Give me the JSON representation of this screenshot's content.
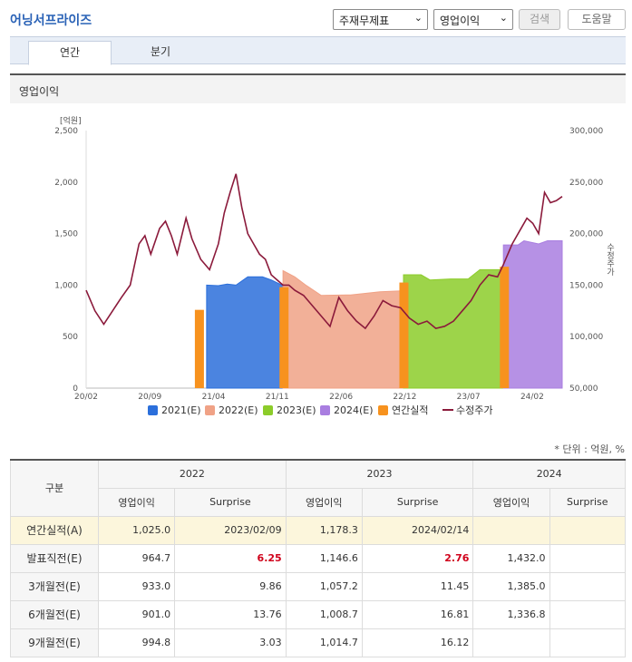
{
  "header": {
    "title": "어닝서프라이즈",
    "select_type": "주재무제표",
    "select_item": "영업이익",
    "search_label": "검색",
    "help_label": "도움말"
  },
  "tabs": [
    {
      "label": "연간",
      "active": true
    },
    {
      "label": "분기",
      "active": false
    }
  ],
  "panel_title": "영업이익",
  "chart_data": {
    "type": "area",
    "left_axis_label": "[억원]",
    "right_axis_label": "수정주가",
    "y_left_ticks": [
      "2,500",
      "2,000",
      "1,500",
      "1,000",
      "500",
      "0"
    ],
    "y_right_ticks": [
      "300,000",
      "250,000",
      "200,000",
      "150,000",
      "100,000",
      "50,000"
    ],
    "x_ticks": [
      "20/02",
      "20/09",
      "21/04",
      "21/11",
      "22/06",
      "22/12",
      "23/07",
      "24/02"
    ],
    "ylim_left": [
      0,
      2500
    ],
    "ylim_right": [
      50000,
      300000
    ],
    "legend": [
      "2021(E)",
      "2022(E)",
      "2023(E)",
      "2024(E)",
      "연간실적",
      "수정주가"
    ],
    "colors": {
      "2021": "#2b6fdb",
      "2022": "#f0a286",
      "2023": "#8ccc2a",
      "2024": "#a97ee0",
      "actual": "#f7921e",
      "price": "#8b1a3b"
    },
    "series_estimates": [
      {
        "name": "2021(E)",
        "points": [
          [
            2.05,
            1000
          ],
          [
            2.25,
            995
          ],
          [
            2.4,
            1010
          ],
          [
            2.55,
            1000
          ],
          [
            2.75,
            1080
          ],
          [
            3.0,
            1080
          ],
          [
            3.15,
            1050
          ],
          [
            3.35,
            995
          ]
        ]
      },
      {
        "name": "2022(E)",
        "points": [
          [
            3.35,
            1140
          ],
          [
            3.55,
            1080
          ],
          [
            3.75,
            995
          ],
          [
            4.0,
            900
          ],
          [
            4.5,
            905
          ],
          [
            5.0,
            935
          ],
          [
            5.4,
            945
          ]
        ]
      },
      {
        "name": "2023(E)",
        "points": [
          [
            5.4,
            1100
          ],
          [
            5.7,
            1100
          ],
          [
            5.85,
            1050
          ],
          [
            6.2,
            1060
          ],
          [
            6.5,
            1060
          ],
          [
            6.7,
            1150
          ],
          [
            7.1,
            1150
          ]
        ]
      },
      {
        "name": "2024(E)",
        "points": [
          [
            7.1,
            1390
          ],
          [
            7.35,
            1390
          ],
          [
            7.45,
            1430
          ],
          [
            7.7,
            1400
          ],
          [
            7.85,
            1430
          ],
          [
            8.1,
            1430
          ]
        ]
      }
    ],
    "actual_bars": [
      {
        "x": 1.85,
        "value": 760
      },
      {
        "x": 3.29,
        "value": 980
      },
      {
        "x": 5.33,
        "value": 1025
      },
      {
        "x": 7.04,
        "value": 1178.3
      }
    ],
    "price": [
      [
        0,
        145000
      ],
      [
        0.15,
        125000
      ],
      [
        0.3,
        112000
      ],
      [
        0.45,
        125000
      ],
      [
        0.6,
        138000
      ],
      [
        0.75,
        150000
      ],
      [
        0.9,
        190000
      ],
      [
        1.0,
        198000
      ],
      [
        1.1,
        180000
      ],
      [
        1.25,
        205000
      ],
      [
        1.35,
        212000
      ],
      [
        1.45,
        198000
      ],
      [
        1.55,
        180000
      ],
      [
        1.7,
        215000
      ],
      [
        1.8,
        195000
      ],
      [
        1.95,
        175000
      ],
      [
        2.1,
        165000
      ],
      [
        2.25,
        190000
      ],
      [
        2.35,
        220000
      ],
      [
        2.45,
        240000
      ],
      [
        2.55,
        258000
      ],
      [
        2.65,
        225000
      ],
      [
        2.75,
        200000
      ],
      [
        2.85,
        190000
      ],
      [
        2.95,
        180000
      ],
      [
        3.05,
        175000
      ],
      [
        3.15,
        160000
      ],
      [
        3.25,
        155000
      ],
      [
        3.35,
        150000
      ],
      [
        3.45,
        150000
      ],
      [
        3.55,
        145000
      ],
      [
        3.7,
        140000
      ],
      [
        3.85,
        130000
      ],
      [
        4.0,
        120000
      ],
      [
        4.15,
        110000
      ],
      [
        4.3,
        138000
      ],
      [
        4.45,
        125000
      ],
      [
        4.6,
        115000
      ],
      [
        4.75,
        108000
      ],
      [
        4.9,
        120000
      ],
      [
        5.05,
        135000
      ],
      [
        5.2,
        130000
      ],
      [
        5.35,
        128000
      ],
      [
        5.5,
        118000
      ],
      [
        5.65,
        112000
      ],
      [
        5.8,
        115000
      ],
      [
        5.95,
        108000
      ],
      [
        6.1,
        110000
      ],
      [
        6.25,
        115000
      ],
      [
        6.4,
        125000
      ],
      [
        6.55,
        135000
      ],
      [
        6.7,
        150000
      ],
      [
        6.85,
        160000
      ],
      [
        7.0,
        158000
      ],
      [
        7.1,
        170000
      ],
      [
        7.25,
        190000
      ],
      [
        7.4,
        205000
      ],
      [
        7.5,
        215000
      ],
      [
        7.6,
        210000
      ],
      [
        7.7,
        200000
      ],
      [
        7.8,
        240000
      ],
      [
        7.9,
        230000
      ],
      [
        8.0,
        232000
      ],
      [
        8.1,
        236000
      ]
    ]
  },
  "table": {
    "unit_note": "* 단위 : 억원, %",
    "corner_label": "구분",
    "years": [
      "2022",
      "2023",
      "2024"
    ],
    "sub_headers": [
      "영업이익",
      "Surprise",
      "영업이익",
      "Surprise",
      "영업이익",
      "Surprise"
    ],
    "rows": [
      {
        "label": "연간실적(A)",
        "cells": [
          "1,025.0",
          "2023/02/09",
          "1,178.3",
          "2024/02/14",
          "",
          ""
        ],
        "actual": true
      },
      {
        "label": "발표직전(E)",
        "cells": [
          "964.7",
          "6.25",
          "1,146.6",
          "2.76",
          "1,432.0",
          ""
        ],
        "red": [
          1,
          3
        ]
      },
      {
        "label": "3개월전(E)",
        "cells": [
          "933.0",
          "9.86",
          "1,057.2",
          "11.45",
          "1,385.0",
          ""
        ]
      },
      {
        "label": "6개월전(E)",
        "cells": [
          "901.0",
          "13.76",
          "1,008.7",
          "16.81",
          "1,336.8",
          ""
        ]
      },
      {
        "label": "9개월전(E)",
        "cells": [
          "994.8",
          "3.03",
          "1,014.7",
          "16.12",
          "",
          ""
        ]
      }
    ]
  }
}
